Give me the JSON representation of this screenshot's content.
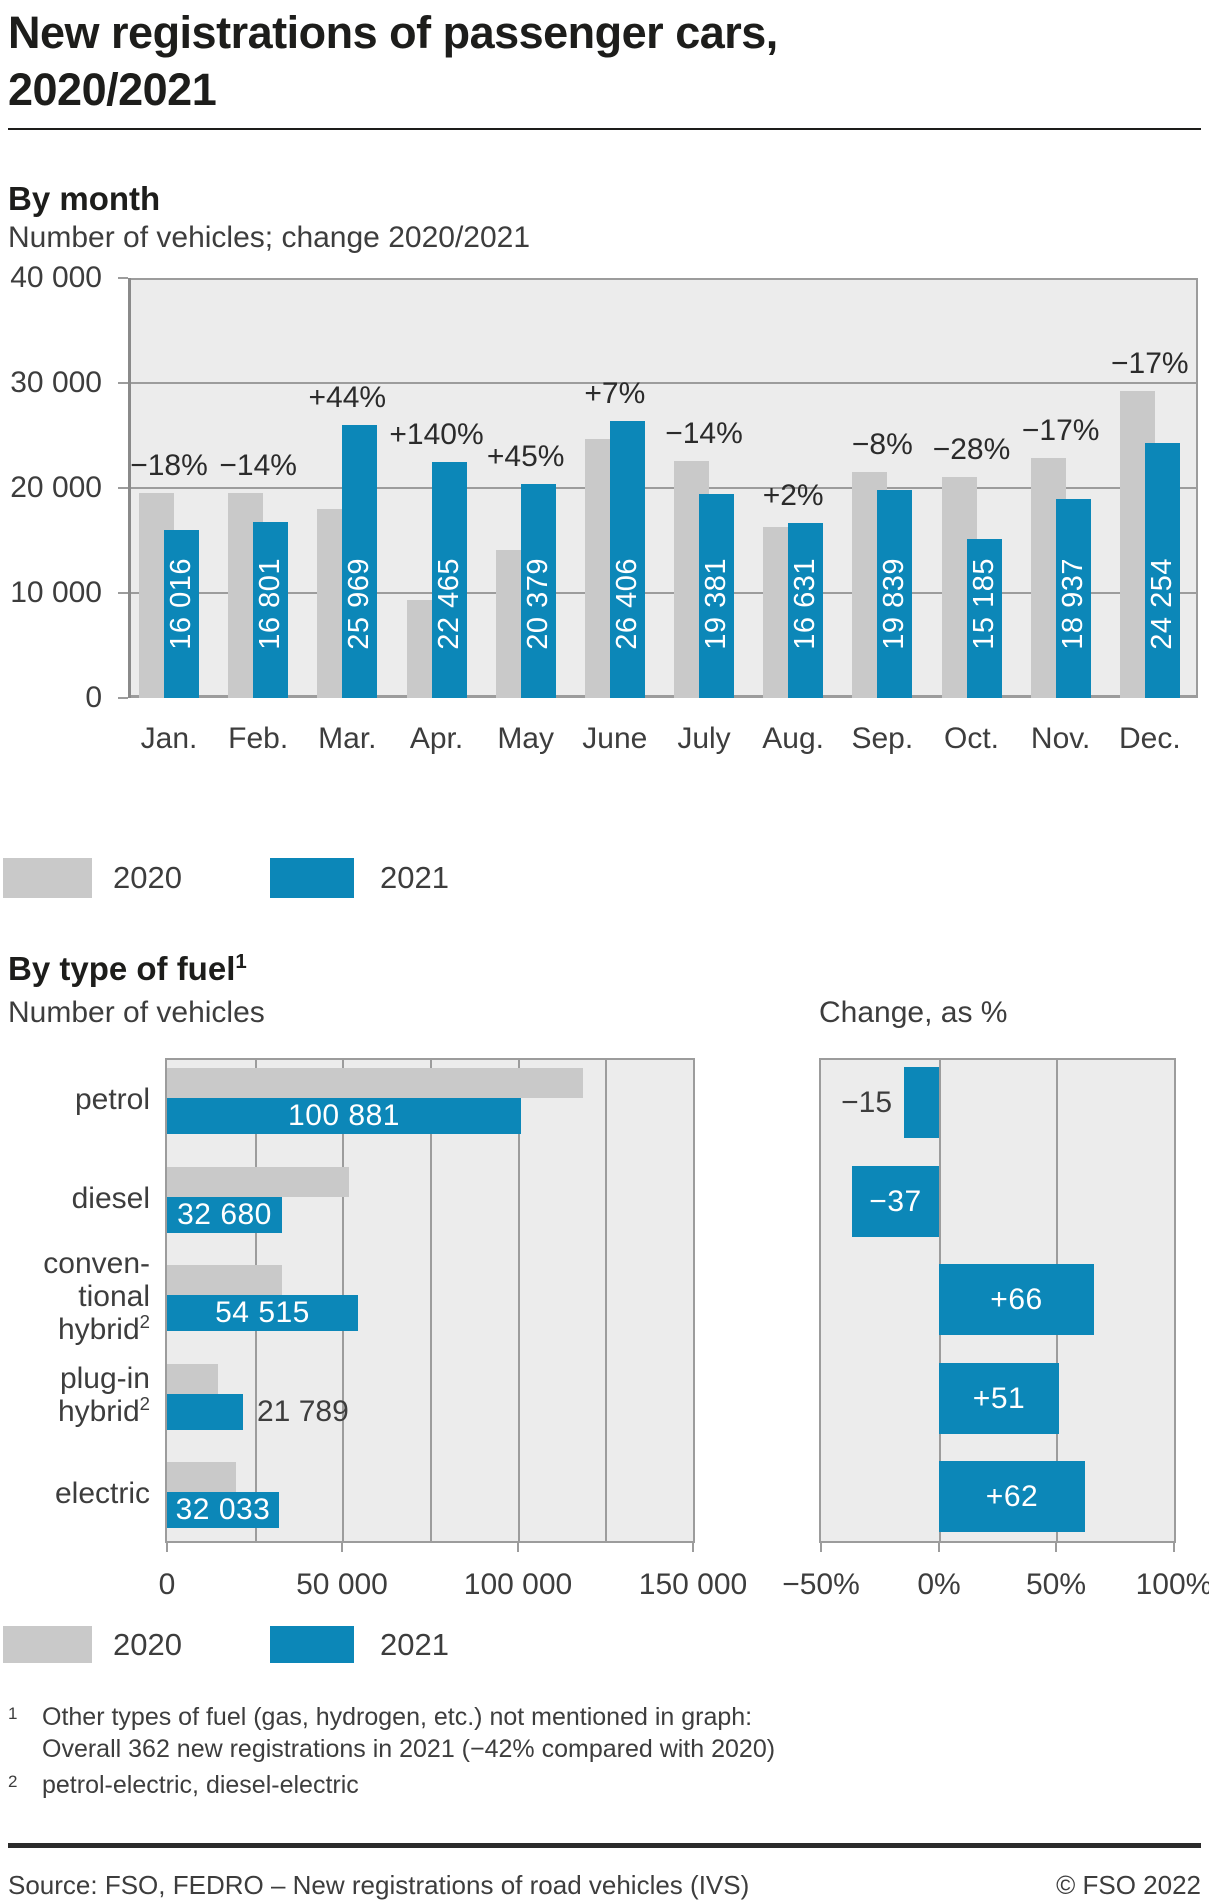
{
  "title": {
    "line1": "New registrations of passenger cars,",
    "line2": "2020/2021"
  },
  "legend": {
    "label_2020": "2020",
    "label_2021": "2021"
  },
  "colors": {
    "accent_blue": "#0c87b8",
    "bar_gray": "#c9c9c9",
    "plot_bg": "#ececec",
    "grid": "#9c9c9c",
    "axis": "#8a8a8a",
    "text_dark": "#1d1d1b",
    "text_gray": "#3d3d3d",
    "bar_label_white": "#ffffff"
  },
  "chart_data": [
    {
      "type": "bar",
      "title": "By month",
      "subtitle": "Number of vehicles; change 2020/2021",
      "categories": [
        "Jan.",
        "Feb.",
        "Mar.",
        "Apr.",
        "May",
        "June",
        "July",
        "Aug.",
        "Sep.",
        "Oct.",
        "Nov.",
        "Dec."
      ],
      "series": [
        {
          "name": "2020",
          "note": "values estimated from bar heights and % change labels",
          "values": [
            19530,
            19540,
            18030,
            9360,
            14050,
            24680,
            22540,
            16300,
            21560,
            21090,
            22820,
            29220
          ]
        },
        {
          "name": "2021",
          "values": [
            16016,
            16801,
            25969,
            22465,
            20379,
            26406,
            19381,
            16631,
            19839,
            15185,
            18937,
            24254
          ],
          "labels": [
            "16 016",
            "16 801",
            "25 969",
            "22 465",
            "20 379",
            "26 406",
            "19 381",
            "16 631",
            "19 839",
            "15 185",
            "18 937",
            "24 254"
          ]
        }
      ],
      "change_labels": [
        "−18%",
        "−14%",
        "+44%",
        "+140%",
        "+45%",
        "+7%",
        "−14%",
        "+2%",
        "−8%",
        "−28%",
        "−17%",
        "−17%"
      ],
      "ylim": [
        0,
        40000
      ],
      "yticks": [
        {
          "value": 0,
          "label": "0"
        },
        {
          "value": 10000,
          "label": "10 000"
        },
        {
          "value": 20000,
          "label": "20 000"
        },
        {
          "value": 30000,
          "label": "30 000"
        },
        {
          "value": 40000,
          "label": "40 000"
        }
      ],
      "grid": "horizontal",
      "legend_position": "bottom"
    },
    {
      "type": "bar-horizontal",
      "title": "By type of fuel",
      "title_sup": "1",
      "categories": [
        {
          "lines": [
            "petrol"
          ]
        },
        {
          "lines": [
            "diesel"
          ]
        },
        {
          "lines": [
            "conven-",
            "tional",
            "hybrid"
          ],
          "sup": "2"
        },
        {
          "lines": [
            "plug-in",
            "hybrid"
          ],
          "sup": "2"
        },
        {
          "lines": [
            "electric"
          ]
        }
      ],
      "panels": [
        {
          "subtitle": "Number of vehicles",
          "xlim": [
            0,
            150000
          ],
          "grid_step": 25000,
          "xticks": [
            {
              "value": 0,
              "label": "0"
            },
            {
              "value": 50000,
              "label": "50 000"
            },
            {
              "value": 100000,
              "label": "100 000"
            },
            {
              "value": 150000,
              "label": "150 000"
            }
          ],
          "series": [
            {
              "name": "2020",
              "note": "values estimated from bar lengths and % change",
              "values": [
                118680,
                51870,
                32840,
                14430,
                19770
              ]
            },
            {
              "name": "2021",
              "values": [
                100881,
                32680,
                54515,
                21789,
                32033
              ],
              "labels": [
                "100 881",
                "32 680",
                "54 515",
                "21 789",
                "32 033"
              ],
              "label_outside": [
                false,
                false,
                false,
                true,
                false
              ]
            }
          ]
        },
        {
          "subtitle": "Change, as %",
          "xlim": [
            -50,
            100
          ],
          "grid_step": 50,
          "xticks": [
            {
              "value": -50,
              "label": "−50%"
            },
            {
              "value": 0,
              "label": "0%"
            },
            {
              "value": 50,
              "label": "50%"
            },
            {
              "value": 100,
              "label": "100%"
            }
          ],
          "values": [
            -15,
            -37,
            66,
            51,
            62
          ],
          "labels": [
            "−15",
            "−37",
            "+66",
            "+51",
            "+62"
          ],
          "label_outside": [
            true,
            false,
            false,
            false,
            false
          ]
        }
      ],
      "legend_position": "bottom"
    }
  ],
  "footnotes": [
    {
      "marker": "1",
      "line1": "Other types of fuel (gas, hydrogen, etc.) not mentioned in graph:",
      "line2": "Overall 362 new registrations in 2021 (−42% compared with 2020)"
    },
    {
      "marker": "2",
      "text": "petrol-electric, diesel-electric"
    }
  ],
  "source": {
    "text": "Source: FSO, FEDRO – New registrations of road vehicles (IVS)",
    "copyright": "© FSO 2022"
  }
}
